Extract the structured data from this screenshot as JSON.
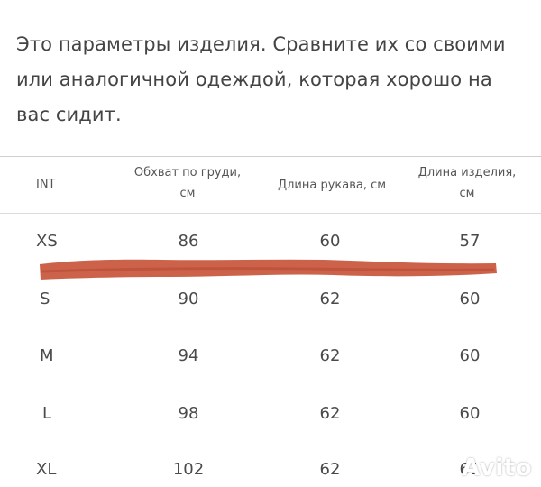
{
  "intro_text": "Это параметры изделия. Сравните их со своими или аналогичной одеждой, которая хорошо на вас сидит.",
  "table": {
    "headers": {
      "int": "INT",
      "chest_line1": "Обхват по груди,",
      "chest_line2": "см",
      "sleeve": "Длина рукава, см",
      "length_line1": "Длина изделия,",
      "length_line2": "см"
    },
    "rows": [
      {
        "size": "XS",
        "chest": "86",
        "sleeve": "60",
        "length": "57"
      },
      {
        "size": "S",
        "chest": "90",
        "sleeve": "62",
        "length": "60"
      },
      {
        "size": "M",
        "chest": "94",
        "sleeve": "62",
        "length": "60"
      },
      {
        "size": "L",
        "chest": "98",
        "sleeve": "62",
        "length": "60"
      },
      {
        "size": "XL",
        "chest": "102",
        "sleeve": "62",
        "length": "61"
      }
    ]
  },
  "watermark": "Avito",
  "colors": {
    "strike": "#c9553b",
    "text": "#4a4a4a",
    "rule": "#cfcfcf"
  }
}
